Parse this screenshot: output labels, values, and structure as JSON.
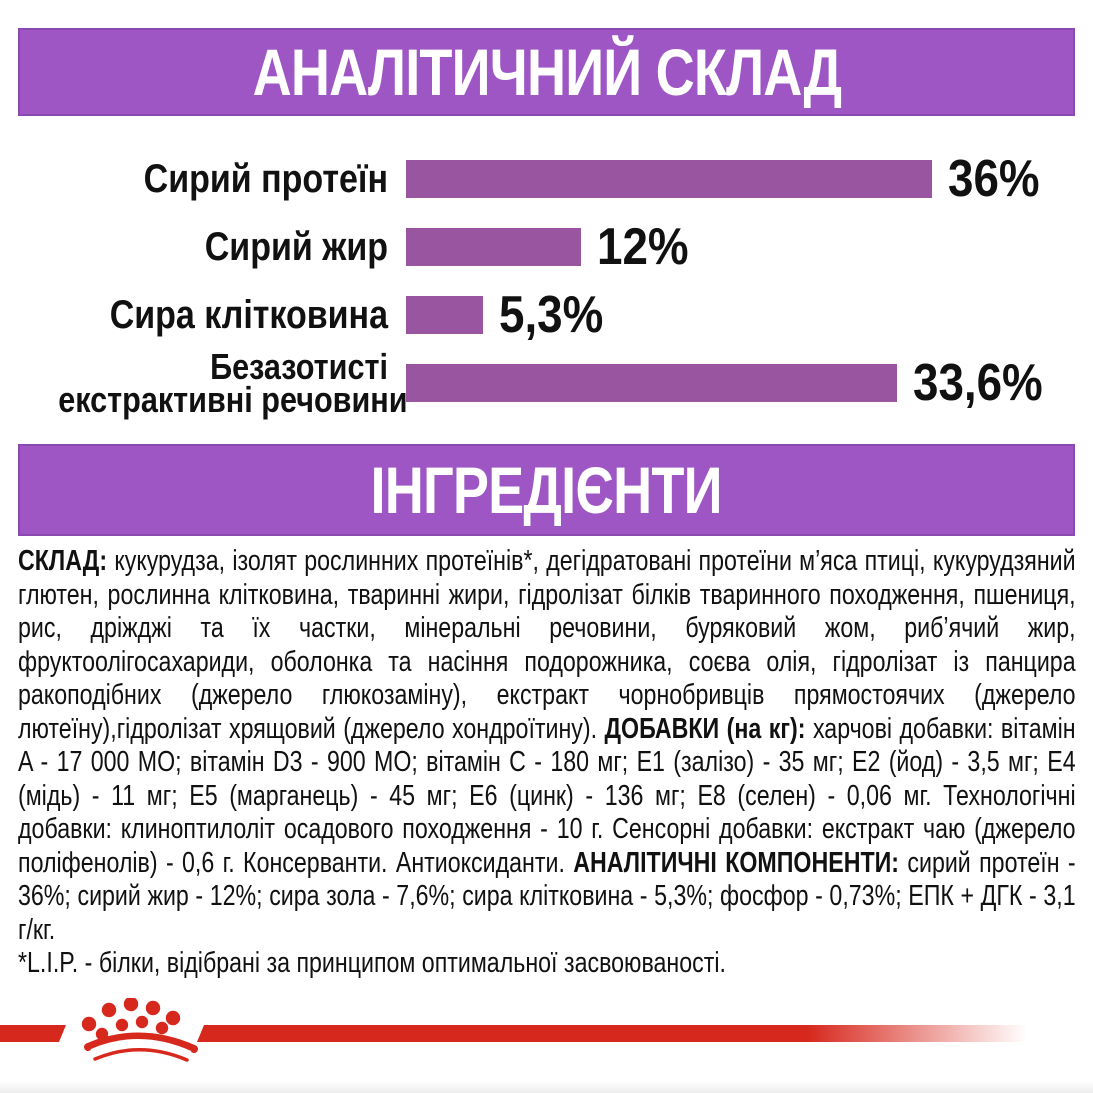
{
  "banners": {
    "analytical": "АНАЛІТИЧНИЙ СКЛАД",
    "ingredients": "ІНГРЕДІЄНТИ"
  },
  "colors": {
    "banner_purple": "#9e56c5",
    "banner_border": "#8a49ae",
    "bar_purple": "#9a55a0",
    "brand_red": "#d7281d",
    "text_black": "#111111"
  },
  "chart_data": {
    "type": "bar",
    "orientation": "horizontal",
    "title": "АНАЛІТИЧНИЙ СКЛАД",
    "categories": [
      "Сирий протеїн",
      "Сирий жир",
      "Сира клітковина",
      "Безазотисті екстрактивні речовини"
    ],
    "label_lines": [
      [
        "Сирий протеїн"
      ],
      [
        "Сирий жир"
      ],
      [
        "Сира клітковина"
      ],
      [
        "Безазотисті",
        "екстрактивні речовини"
      ]
    ],
    "values": [
      36,
      12,
      5.3,
      33.6
    ],
    "value_labels": [
      "36%",
      "12%",
      "5,3%",
      "33,6%"
    ],
    "unit": "%",
    "xlim": [
      0,
      40
    ],
    "grid": false,
    "legend": false,
    "bar_color": "#9a55a0"
  },
  "ingredients": {
    "segments": [
      {
        "b": true,
        "t": "СКЛАД: "
      },
      {
        "b": false,
        "t": "кукурудза, ізолят рослинних протеїнів*, дегідратовані протеїни м’яса птиці, кукурудзяний глютен, рослинна клітковина, тваринні жири, гідролізат білків тваринного походження, пшениця, рис, дріжджі та їх частки, мінеральні речовини, буряковий жом, риб’ячий жир, фруктоолігосахариди, оболонка та насіння подорожника, соєва олія, гідролізат із панцира ракоподібних (джерело глюкозаміну), екстракт чорнобривців прямостоячих (джерело лютеїну),гідролізат хрящовий (джерело хондроїтину). "
      },
      {
        "b": true,
        "t": "ДОБАВКИ (на кг): "
      },
      {
        "b": false,
        "t": "харчові добавки: вітамін A - 17 000 МО; вітамін D3 - 900 МО; вітамін C - 180 мг; E1 (залізо) - 35 мг; E2 (йод) - 3,5 мг; E4 (мідь) - 11 мг; E5 (марганець) - 45 мг; E6 (цинк) - 136 мг; E8 (селен) - 0,06 мг. Технологічні добавки: клиноптилоліт осадового походження - 10 г. Сенсорні добавки: екстракт чаю (джерело поліфенолів) - 0,6 г. Консерванти. Антиоксиданти. "
      },
      {
        "b": true,
        "t": "АНАЛІТИЧНІ КОМПОНЕНТИ: "
      },
      {
        "b": false,
        "t": "сирий протеїн - 36%; сирий жир - 12%; сира зола - 7,6%; сира клітковина - 5,3%; фосфор - 0,73%; ЕПК + ДГК - 3,1 г/кг."
      }
    ],
    "footnote": "*L.I.P. - білки, відібрані за принципом оптимальної засвоюваності."
  },
  "footer": {
    "logo": "royal-canin-crown"
  }
}
